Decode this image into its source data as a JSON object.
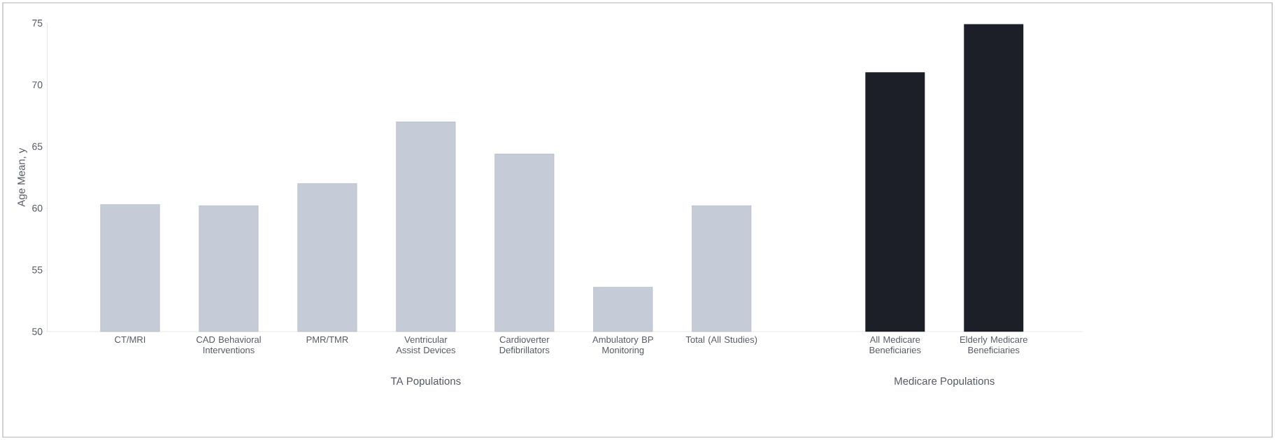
{
  "chart_data": {
    "type": "bar",
    "ylabel": "Age Mean, y",
    "categories": [
      "CT/MRI",
      "CAD Behavioral Interventions",
      "PMR/TMR",
      "Ventricular Assist Devices",
      "Cardioverter Defibrillators",
      "Ambulatory BP Monitoring",
      "Total (All Studies)",
      "All Medicare Beneficiaries",
      "Elderly Medicare Beneficiaries"
    ],
    "values": [
      60.3,
      60.2,
      62.0,
      67.0,
      64.4,
      53.6,
      60.2,
      71.0,
      74.9
    ],
    "colors": [
      "#c5ccd8",
      "#c5ccd8",
      "#c5ccd8",
      "#c5ccd8",
      "#c5ccd8",
      "#c5ccd8",
      "#c5ccd8",
      "#1c1f28",
      "#1c1f28"
    ],
    "ylim": [
      50,
      75
    ],
    "yticks": [
      50,
      55,
      60,
      65,
      70,
      75
    ],
    "annotations": [
      "TA Populations",
      "Medicare Populations"
    ],
    "grid": false
  }
}
